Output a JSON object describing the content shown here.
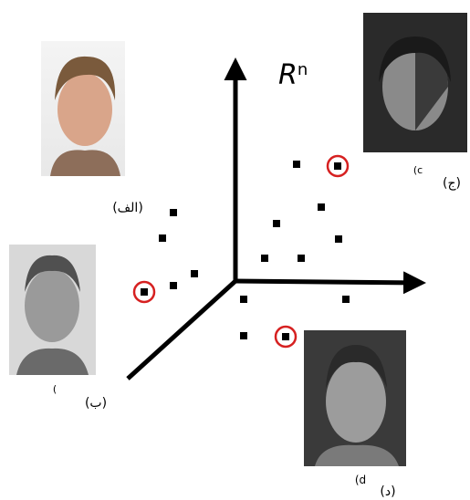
{
  "axis_label": {
    "base": "R",
    "superscript": "n"
  },
  "labels": {
    "alef": "(الف)",
    "be": "(ب)",
    "jim": "(ج)",
    "dal": "(د)",
    "jim_fragment": "(c",
    "be_fragment": "(",
    "dal_fragment": "(d"
  }
}
